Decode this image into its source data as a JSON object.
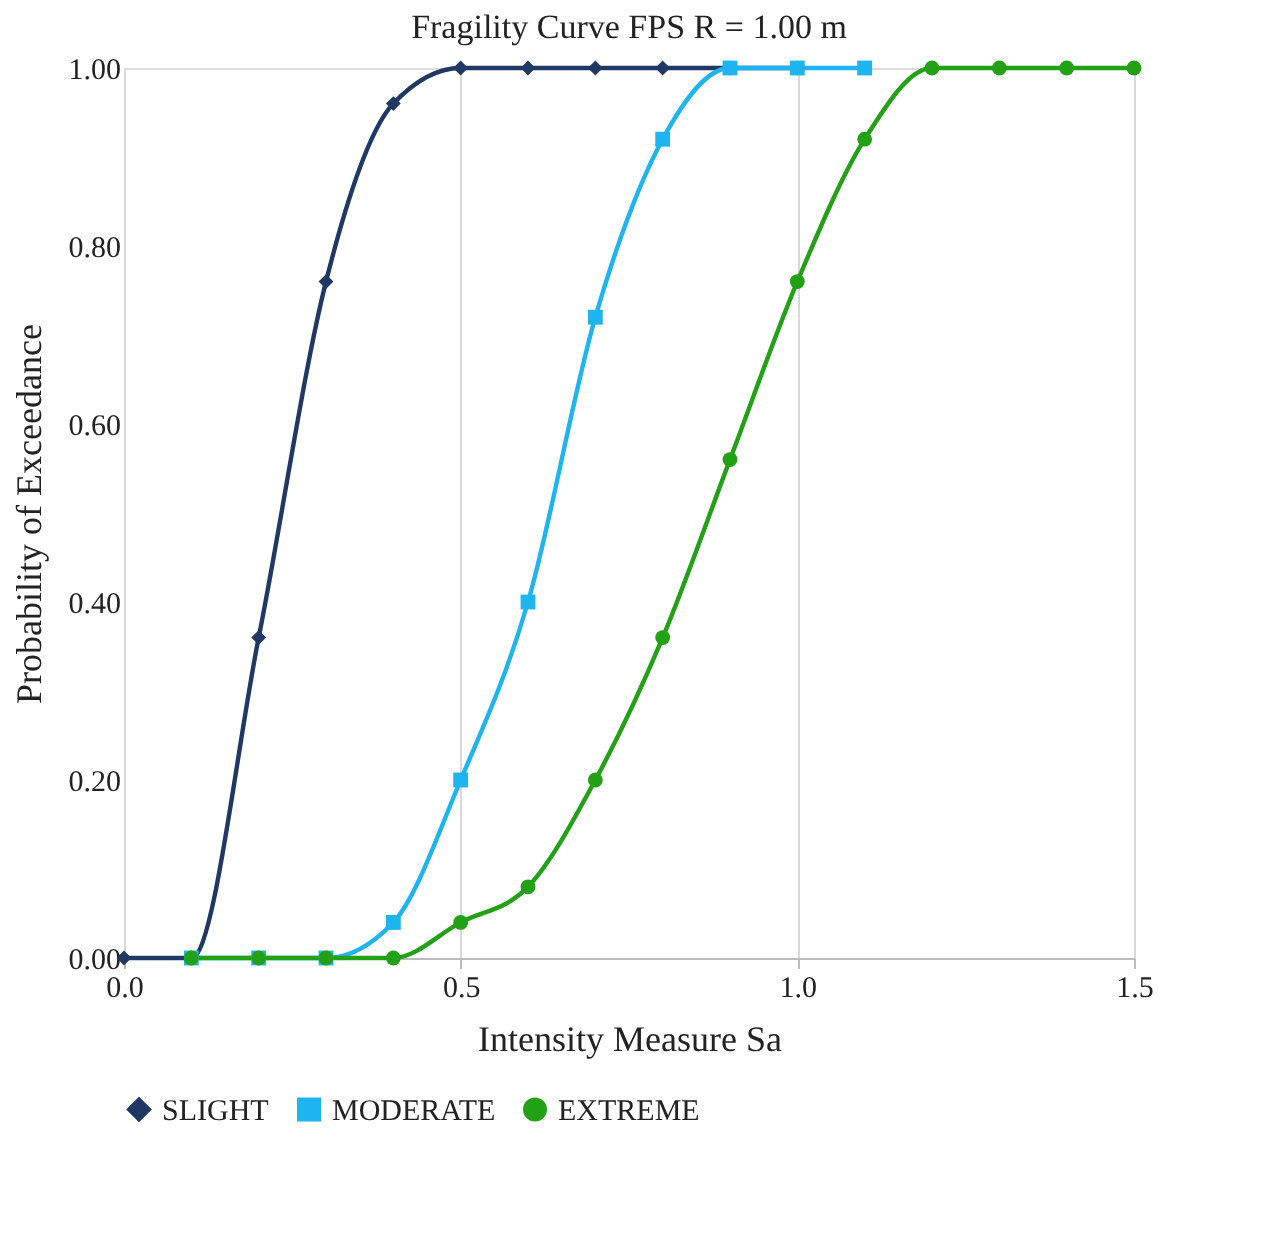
{
  "chart_data": {
    "type": "line",
    "title": "Fragility Curve FPS R = 1.00 m",
    "xlabel": "Intensity Measure Sa",
    "ylabel": "Probability of Exceedance",
    "xlim": [
      0,
      1.5
    ],
    "xticks": [
      {
        "value": 0,
        "label": "0.0"
      },
      {
        "value": 0.5,
        "label": "0.5"
      },
      {
        "value": 1,
        "label": "1.0"
      },
      {
        "value": 1.5,
        "label": "1.5"
      }
    ],
    "ylim": [
      0,
      1
    ],
    "yticks": [
      {
        "value": 0,
        "label": "0.00"
      },
      {
        "value": 0.2,
        "label": "0.20"
      },
      {
        "value": 0.4,
        "label": "0.40"
      },
      {
        "value": 0.6,
        "label": "0.60"
      },
      {
        "value": 0.8,
        "label": "0.80"
      },
      {
        "value": 1,
        "label": "1.00"
      }
    ],
    "grid": "x",
    "legend": "bottom",
    "line_style": "solid",
    "series": [
      {
        "name": "SLIGHT",
        "color": "#1f3864",
        "marker": "diamond",
        "x": [
          0,
          0.1,
          0.2,
          0.3,
          0.4,
          0.5,
          0.6,
          0.7,
          0.8,
          0.9,
          1.0
        ],
        "values": [
          0,
          0,
          0.36,
          0.76,
          0.96,
          1,
          1,
          1,
          1,
          1,
          1
        ]
      },
      {
        "name": "MODERATE",
        "color": "#1eb4f0",
        "marker": "square",
        "x": [
          0.1,
          0.2,
          0.3,
          0.4,
          0.5,
          0.6,
          0.7,
          0.8,
          0.9,
          1.0,
          1.1
        ],
        "values": [
          0,
          0,
          0,
          0.04,
          0.2,
          0.4,
          0.72,
          0.92,
          1,
          1,
          1
        ]
      },
      {
        "name": "EXTREME",
        "color": "#22a116",
        "marker": "circle",
        "x": [
          0.1,
          0.2,
          0.3,
          0.4,
          0.5,
          0.6,
          0.7,
          0.8,
          0.9,
          1.0,
          1.1,
          1.2,
          1.3,
          1.4,
          1.5
        ],
        "values": [
          0,
          0,
          0,
          0,
          0.04,
          0.08,
          0.2,
          0.36,
          0.56,
          0.76,
          0.92,
          1,
          1,
          1,
          1
        ]
      }
    ]
  }
}
